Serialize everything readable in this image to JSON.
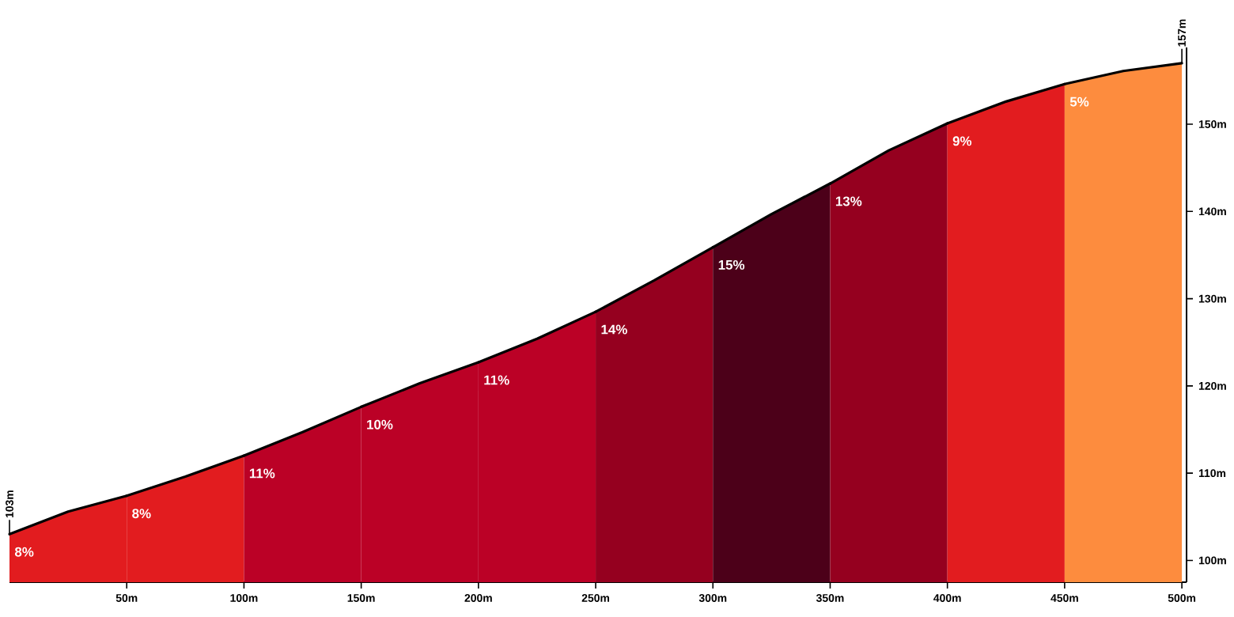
{
  "chart_data": {
    "type": "area",
    "xlim": [
      0,
      502
    ],
    "ylim": [
      97.5,
      158.8
    ],
    "xticks": [
      {
        "value": 50,
        "label": "50m"
      },
      {
        "value": 100,
        "label": "100m"
      },
      {
        "value": 150,
        "label": "150m"
      },
      {
        "value": 200,
        "label": "200m"
      },
      {
        "value": 250,
        "label": "250m"
      },
      {
        "value": 300,
        "label": "300m"
      },
      {
        "value": 350,
        "label": "350m"
      },
      {
        "value": 400,
        "label": "400m"
      },
      {
        "value": 450,
        "label": "450m"
      },
      {
        "value": 500,
        "label": "500m"
      }
    ],
    "yticks": [
      {
        "value": 100,
        "label": "100m"
      },
      {
        "value": 110,
        "label": "110m"
      },
      {
        "value": 120,
        "label": "120m"
      },
      {
        "value": 130,
        "label": "130m"
      },
      {
        "value": 140,
        "label": "140m"
      },
      {
        "value": 150,
        "label": "150m"
      }
    ],
    "grid": false,
    "series": [
      {
        "color": "#e21c1f",
        "x": [
          0,
          25,
          50
        ],
        "values": [
          103,
          105.6,
          107.4
        ],
        "value_labels": [
          "103m",
          null,
          null
        ]
      },
      {
        "color": "#e21c1f",
        "x": [
          50,
          75,
          100
        ],
        "values": [
          107.4,
          109.6,
          112
        ]
      },
      {
        "color": "#bb0126",
        "x": [
          100,
          125,
          150
        ],
        "values": [
          112,
          114.7,
          117.6
        ]
      },
      {
        "color": "#bb0126",
        "x": [
          150,
          175,
          200
        ],
        "values": [
          117.6,
          120.3,
          122.7
        ]
      },
      {
        "color": "#bb0126",
        "x": [
          200,
          225,
          250
        ],
        "values": [
          122.7,
          125.4,
          128.5
        ]
      },
      {
        "color": "#95001f",
        "x": [
          250,
          275,
          300
        ],
        "values": [
          128.5,
          132.1,
          135.9
        ]
      },
      {
        "color": "#4c0019",
        "x": [
          300,
          325,
          350
        ],
        "values": [
          135.9,
          139.7,
          143.2
        ]
      },
      {
        "color": "#95001f",
        "x": [
          350,
          375,
          400
        ],
        "values": [
          143.2,
          147,
          150.1
        ]
      },
      {
        "color": "#e21c1f",
        "x": [
          400,
          425,
          450
        ],
        "values": [
          150.1,
          152.6,
          154.6
        ]
      },
      {
        "color": "#fd8c3e",
        "x": [
          450,
          475,
          500
        ],
        "values": [
          154.6,
          156.1,
          157
        ],
        "value_labels": [
          null,
          null,
          "157m"
        ]
      }
    ],
    "annotations": [
      {
        "text": "8%",
        "x": 0,
        "y": 103
      },
      {
        "text": "8%",
        "x": 50,
        "y": 107.4
      },
      {
        "text": "11%",
        "x": 100,
        "y": 112
      },
      {
        "text": "10%",
        "x": 150,
        "y": 117.6
      },
      {
        "text": "11%",
        "x": 200,
        "y": 122.7
      },
      {
        "text": "14%",
        "x": 250,
        "y": 128.5
      },
      {
        "text": "15%",
        "x": 300,
        "y": 135.9
      },
      {
        "text": "13%",
        "x": 350,
        "y": 143.2
      },
      {
        "text": "9%",
        "x": 400,
        "y": 150.1
      },
      {
        "text": "5%",
        "x": 450,
        "y": 154.6
      }
    ]
  }
}
